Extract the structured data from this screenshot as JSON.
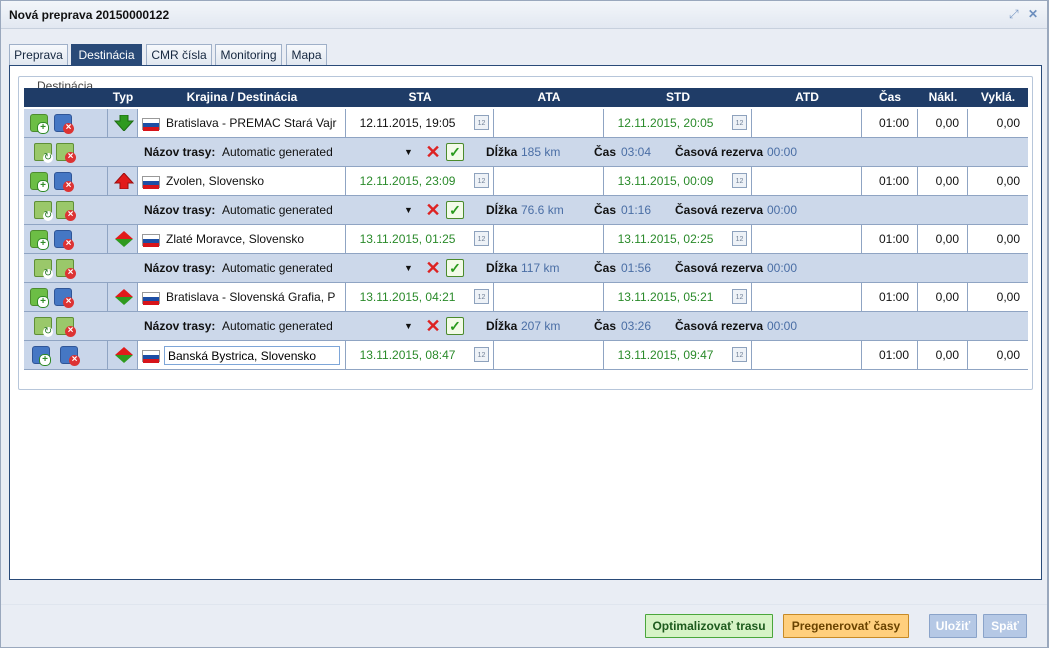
{
  "window": {
    "title": "Nová preprava 20150000122",
    "icons": [
      "expand-icon",
      "close-icon"
    ]
  },
  "tabs": [
    {
      "label": "Preprava",
      "active": false
    },
    {
      "label": "Destinácia",
      "active": true
    },
    {
      "label": "CMR čísla",
      "active": false
    },
    {
      "label": "Monitoring",
      "active": false
    },
    {
      "label": "Mapa",
      "active": false
    }
  ],
  "section_title": "Destinácia",
  "columns": [
    "Typ",
    "Krajina / Destinácia",
    "STA",
    "ATA",
    "STD",
    "ATD",
    "Čas",
    "Nákl.",
    "Vyklá."
  ],
  "destinations": [
    {
      "type": "unload",
      "place": "Bratislava - PREMAC Stará Vajr",
      "sta": "12.11.2015, 19:05",
      "sta_color": "black",
      "ata": "",
      "std": "12.11.2015, 20:05",
      "atd": "",
      "time": "01:00",
      "load": "0,00",
      "unload": "0,00",
      "editing": false
    },
    {
      "type": "load",
      "place": "Zvolen, Slovensko",
      "sta": "12.11.2015, 23:09",
      "sta_color": "green",
      "ata": "",
      "std": "13.11.2015, 00:09",
      "atd": "",
      "time": "01:00",
      "load": "0,00",
      "unload": "0,00",
      "editing": false
    },
    {
      "type": "both",
      "place": "Zlaté Moravce, Slovensko",
      "sta": "13.11.2015, 01:25",
      "sta_color": "green",
      "ata": "",
      "std": "13.11.2015, 02:25",
      "atd": "",
      "time": "01:00",
      "load": "0,00",
      "unload": "0,00",
      "editing": false
    },
    {
      "type": "both",
      "place": "Bratislava - Slovenská Grafia, P",
      "sta": "13.11.2015, 04:21",
      "sta_color": "green",
      "ata": "",
      "std": "13.11.2015, 05:21",
      "atd": "",
      "time": "01:00",
      "load": "0,00",
      "unload": "0,00",
      "editing": false
    },
    {
      "type": "both",
      "place": "Banská Bystrica, Slovensko",
      "sta": "13.11.2015, 08:47",
      "sta_color": "green",
      "ata": "",
      "std": "13.11.2015, 09:47",
      "atd": "",
      "time": "01:00",
      "load": "0,00",
      "unload": "0,00",
      "editing": true
    }
  ],
  "routes": [
    {
      "name_label": "Názov trasy:",
      "name": "Automatic generated",
      "length_label": "Dĺžka",
      "length": "185 km",
      "time_label": "Čas",
      "time": "03:04",
      "reserve_label": "Časová rezerva",
      "reserve": "00:00"
    },
    {
      "name_label": "Názov trasy:",
      "name": "Automatic generated",
      "length_label": "Dĺžka",
      "length": "76.6 km",
      "time_label": "Čas",
      "time": "01:16",
      "reserve_label": "Časová rezerva",
      "reserve": "00:00"
    },
    {
      "name_label": "Názov trasy:",
      "name": "Automatic generated",
      "length_label": "Dĺžka",
      "length": "117 km",
      "time_label": "Čas",
      "time": "01:56",
      "reserve_label": "Časová rezerva",
      "reserve": "00:00"
    },
    {
      "name_label": "Názov trasy:",
      "name": "Automatic generated",
      "length_label": "Dĺžka",
      "length": "207 km",
      "time_label": "Čas",
      "time": "03:26",
      "reserve_label": "Časová rezerva",
      "reserve": "00:00"
    }
  ],
  "buttons": {
    "optimize": "Optimalizovať trasu",
    "regenerate": "Pregenerovať časy",
    "save": "Uložiť",
    "back": "Späť"
  },
  "colors": {
    "header_bg": "#1f3c67",
    "row_bg": "#c9d6ea",
    "green_time": "#2a8a2a",
    "blue_value": "#4a6ea5"
  }
}
